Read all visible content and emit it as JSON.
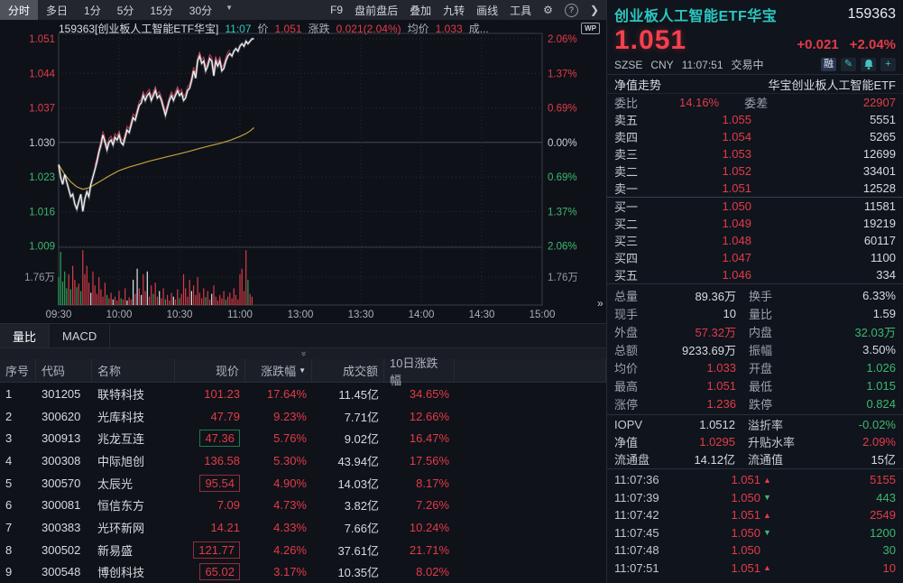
{
  "colors": {
    "red": "#e23b4a",
    "green": "#3cb96e",
    "teal": "#2cc8c0",
    "white": "#d6dae1",
    "yellow": "#c2a13c"
  },
  "toolbar": {
    "tabs": [
      {
        "label": "分时",
        "selected": true
      },
      {
        "label": "多日",
        "selected": false
      },
      {
        "label": "1分",
        "selected": false
      },
      {
        "label": "5分",
        "selected": false
      },
      {
        "label": "15分",
        "selected": false
      },
      {
        "label": "30分",
        "selected": false
      }
    ],
    "dropdown_caret": "▼",
    "right_items": [
      "F9",
      "盘前盘后",
      "叠加",
      "九转",
      "画线",
      "工具"
    ],
    "gear_icon": "⚙",
    "help_icon": "?",
    "more_icon": "❯"
  },
  "chart": {
    "info_segments": [
      {
        "text": "159363[创业板人工智能ETF华宝]",
        "color": "title"
      },
      {
        "text": "11:07",
        "color": "cyan"
      },
      {
        "text": "价",
        "color": "label"
      },
      {
        "text": "1.051",
        "color": "red"
      },
      {
        "text": "涨跌",
        "color": "label"
      },
      {
        "text": "0.021(2.04%)",
        "color": "red"
      },
      {
        "text": "均价",
        "color": "label"
      },
      {
        "text": "1.033",
        "color": "red"
      },
      {
        "text": "成...",
        "color": "label"
      }
    ],
    "wp_badge": "WP",
    "collapse_handle": "»",
    "chart_data": {
      "type": "line",
      "title": "159363 创业板人工智能ETF华宝 分时图",
      "x_ticks": [
        "09:30",
        "10:00",
        "10:30",
        "11:00",
        "13:00",
        "13:30",
        "14:00",
        "14:30",
        "15:00"
      ],
      "y_left_labels": [
        "1.051",
        "1.044",
        "1.037",
        "1.030",
        "1.023",
        "1.016",
        "1.009"
      ],
      "y_right_labels": [
        "2.06%",
        "1.37%",
        "0.69%",
        "0.00%",
        "0.69%",
        "1.37%",
        "2.06%"
      ],
      "vol_axis_label": "1.76万",
      "prev_close": 1.03,
      "ylim": [
        1.009,
        1.051
      ],
      "session_minutes": 240,
      "current_minute": 97,
      "price_series": [
        1.0255,
        1.023,
        1.0215,
        1.0235,
        1.022,
        1.0205,
        1.019,
        1.0195,
        1.0175,
        1.0165,
        1.018,
        1.0195,
        1.016,
        1.0185,
        1.02,
        1.019,
        1.0215,
        1.023,
        1.0245,
        1.026,
        1.028,
        1.0295,
        1.0315,
        1.03,
        1.0285,
        1.03,
        1.0305,
        1.0295,
        1.031,
        1.0305,
        1.0315,
        1.03,
        1.0295,
        1.031,
        1.0325,
        1.032,
        1.0335,
        1.035,
        1.0345,
        1.036,
        1.0375,
        1.038,
        1.0395,
        1.0385,
        1.0395,
        1.04,
        1.0385,
        1.0395,
        1.0405,
        1.039,
        1.0395,
        1.0385,
        1.037,
        1.0355,
        1.037,
        1.0385,
        1.0395,
        1.0385,
        1.0395,
        1.0405,
        1.0395,
        1.04,
        1.0385,
        1.039,
        1.0405,
        1.041,
        1.0425,
        1.0445,
        1.043,
        1.0465,
        1.0475,
        1.046,
        1.0465,
        1.0445,
        1.0455,
        1.047,
        1.0465,
        1.0435,
        1.0465,
        1.0455,
        1.0465,
        1.0445,
        1.045,
        1.0465,
        1.0475,
        1.048,
        1.0475,
        1.0485,
        1.049,
        1.0485,
        1.0495,
        1.05,
        1.0495,
        1.0505,
        1.05,
        1.0505,
        1.051,
        1.051
      ],
      "avg_series": [
        [
          0,
          1.0255
        ],
        [
          3,
          1.0235
        ],
        [
          6,
          1.022
        ],
        [
          9,
          1.021
        ],
        [
          12,
          1.0205
        ],
        [
          15,
          1.0208
        ],
        [
          18,
          1.0215
        ],
        [
          21,
          1.0222
        ],
        [
          25,
          1.0232
        ],
        [
          30,
          1.0243
        ],
        [
          35,
          1.025
        ],
        [
          40,
          1.0256
        ],
        [
          45,
          1.0262
        ],
        [
          50,
          1.0267
        ],
        [
          55,
          1.0272
        ],
        [
          60,
          1.0277
        ],
        [
          65,
          1.0282
        ],
        [
          70,
          1.0288
        ],
        [
          75,
          1.0293
        ],
        [
          80,
          1.0298
        ],
        [
          85,
          1.0304
        ],
        [
          90,
          1.0312
        ],
        [
          93,
          1.0318
        ],
        [
          95,
          1.0323
        ],
        [
          97,
          1.033
        ]
      ],
      "lead_line": {
        "from": 18,
        "to": 85,
        "offset": 0.0008
      },
      "volume_bars": [
        "g50",
        "g95",
        "g42",
        "g60",
        "g30",
        "r55",
        "g28",
        "r70",
        "r45",
        "g32",
        "r38",
        "g25",
        "r98",
        "r55",
        "r70",
        "r40",
        "w22",
        "r60",
        "r35",
        "r20",
        "r50",
        "r28",
        "r15",
        "r40",
        "g18",
        "r12",
        "r22",
        "w10",
        "r15",
        "r08",
        "r25",
        "g12",
        "r10",
        "r30",
        "w08",
        "r14",
        "r10",
        "w45",
        "r20",
        "w65",
        "r30",
        "w18",
        "r55",
        "r25",
        "w60",
        "r15",
        "r35",
        "g20",
        "r40",
        "r15",
        "w25",
        "r12",
        "r30",
        "g10",
        "r18",
        "r08",
        "r22",
        "w15",
        "r10",
        "r28",
        "g12",
        "r20",
        "r55",
        "r30",
        "r15",
        "r45",
        "w25",
        "r35",
        "r18",
        "r50",
        "r22",
        "r12",
        "r30",
        "g14",
        "r25",
        "r10",
        "w20",
        "r35",
        "r15",
        "r08",
        "r18",
        "r12",
        "r25",
        "g10",
        "r15",
        "r22",
        "r12",
        "r30",
        "r18",
        "r10",
        "r55",
        "r65",
        "r25",
        "r98",
        "g45",
        "r20",
        "r15"
      ]
    }
  },
  "subtabs": [
    {
      "label": "量比",
      "selected": true
    },
    {
      "label": "MACD",
      "selected": false
    }
  ],
  "splitter_icon": "»",
  "table": {
    "headers": [
      {
        "label": "序号",
        "align": "left"
      },
      {
        "label": "代码",
        "align": "left"
      },
      {
        "label": "名称",
        "align": "left"
      },
      {
        "label": "现价",
        "align": "right"
      },
      {
        "label": "涨跌幅",
        "align": "right",
        "sort": "▼"
      },
      {
        "label": "成交额",
        "align": "right"
      },
      {
        "label": "10日涨跌幅",
        "align": "right"
      }
    ],
    "rows": [
      {
        "idx": "1",
        "code": "301205",
        "name": "联特科技",
        "price": "101.23",
        "pct": "17.64%",
        "amount": "11.45亿",
        "pct10": "34.65%",
        "box": null
      },
      {
        "idx": "2",
        "code": "300620",
        "name": "光库科技",
        "price": "47.79",
        "pct": "9.23%",
        "amount": "7.71亿",
        "pct10": "12.66%",
        "box": null
      },
      {
        "idx": "3",
        "code": "300913",
        "name": "兆龙互连",
        "price": "47.36",
        "pct": "5.76%",
        "amount": "9.02亿",
        "pct10": "16.47%",
        "box": "green"
      },
      {
        "idx": "4",
        "code": "300308",
        "name": "中际旭创",
        "price": "136.58",
        "pct": "5.30%",
        "amount": "43.94亿",
        "pct10": "17.56%",
        "box": null
      },
      {
        "idx": "5",
        "code": "300570",
        "name": "太辰光",
        "price": "95.54",
        "pct": "4.90%",
        "amount": "14.03亿",
        "pct10": "8.17%",
        "box": "red"
      },
      {
        "idx": "6",
        "code": "300081",
        "name": "恒信东方",
        "price": "7.09",
        "pct": "4.73%",
        "amount": "3.82亿",
        "pct10": "7.26%",
        "box": null
      },
      {
        "idx": "7",
        "code": "300383",
        "name": "光环新网",
        "price": "14.21",
        "pct": "4.33%",
        "amount": "7.66亿",
        "pct10": "10.24%",
        "box": null
      },
      {
        "idx": "8",
        "code": "300502",
        "name": "新易盛",
        "price": "121.77",
        "pct": "4.26%",
        "amount": "37.61亿",
        "pct10": "21.71%",
        "box": "red"
      },
      {
        "idx": "9",
        "code": "300548",
        "name": "博创科技",
        "price": "65.02",
        "pct": "3.17%",
        "amount": "10.35亿",
        "pct10": "8.02%",
        "box": "red"
      }
    ]
  },
  "panel": {
    "name": "创业板人工智能ETF华宝",
    "code": "159363",
    "price": "1.051",
    "change": "+0.021",
    "change_pct": "+2.04%",
    "exchange": "SZSE",
    "currency": "CNY",
    "time": "11:07:51",
    "status": "交易中",
    "badge": "融",
    "nav": {
      "label": "净值走势",
      "value": "华宝创业板人工智能ETF"
    },
    "weibi": {
      "label": "委比",
      "value": "14.16%",
      "label2": "委差",
      "value2": "22907"
    },
    "asks": [
      {
        "label": "卖五",
        "price": "1.055",
        "vol": "5551"
      },
      {
        "label": "卖四",
        "price": "1.054",
        "vol": "5265"
      },
      {
        "label": "卖三",
        "price": "1.053",
        "vol": "12699"
      },
      {
        "label": "卖二",
        "price": "1.052",
        "vol": "33401"
      },
      {
        "label": "卖一",
        "price": "1.051",
        "vol": "12528"
      }
    ],
    "bids": [
      {
        "label": "买一",
        "price": "1.050",
        "vol": "11581"
      },
      {
        "label": "买二",
        "price": "1.049",
        "vol": "19219"
      },
      {
        "label": "买三",
        "price": "1.048",
        "vol": "60117"
      },
      {
        "label": "买四",
        "price": "1.047",
        "vol": "1100"
      },
      {
        "label": "买五",
        "price": "1.046",
        "vol": "334"
      }
    ],
    "stats": [
      {
        "l": "总量",
        "v": "89.36万",
        "vc": "w",
        "l2": "换手",
        "v2": "6.33%",
        "v2c": "w"
      },
      {
        "l": "现手",
        "v": "10",
        "vc": "w",
        "l2": "量比",
        "v2": "1.59",
        "v2c": "w"
      },
      {
        "l": "外盘",
        "v": "57.32万",
        "vc": "r",
        "l2": "内盘",
        "v2": "32.03万",
        "v2c": "g"
      },
      {
        "l": "总额",
        "v": "9233.69万",
        "vc": "w",
        "l2": "振幅",
        "v2": "3.50%",
        "v2c": "w"
      },
      {
        "l": "均价",
        "v": "1.033",
        "vc": "r",
        "l2": "开盘",
        "v2": "1.026",
        "v2c": "g"
      },
      {
        "l": "最高",
        "v": "1.051",
        "vc": "r",
        "l2": "最低",
        "v2": "1.015",
        "v2c": "g"
      },
      {
        "l": "涨停",
        "v": "1.236",
        "vc": "r",
        "l2": "跌停",
        "v2": "0.824",
        "v2c": "g"
      }
    ],
    "iopv": [
      {
        "l": "IOPV",
        "v": "1.0512",
        "vc": "w",
        "l2": "溢折率",
        "v2": "-0.02%",
        "v2c": "g"
      },
      {
        "l": "净值",
        "v": "1.0295",
        "vc": "r",
        "l2": "升贴水率",
        "v2": "2.09%",
        "v2c": "r"
      },
      {
        "l": "流通盘",
        "v": "14.12亿",
        "vc": "w",
        "l2": "流通值",
        "v2": "15亿",
        "v2c": "w"
      }
    ],
    "ticks": [
      {
        "time": "11:07:36",
        "price": "1.051",
        "dir": "up",
        "vol": "5155",
        "volc": "r"
      },
      {
        "time": "11:07:39",
        "price": "1.050",
        "dir": "down",
        "vol": "443",
        "volc": "g"
      },
      {
        "time": "11:07:42",
        "price": "1.051",
        "dir": "up",
        "vol": "2549",
        "volc": "r"
      },
      {
        "time": "11:07:45",
        "price": "1.050",
        "dir": "down",
        "vol": "1200",
        "volc": "g"
      },
      {
        "time": "11:07:48",
        "price": "1.050",
        "dir": "none",
        "vol": "30",
        "volc": "g"
      },
      {
        "time": "11:07:51",
        "price": "1.051",
        "dir": "up",
        "vol": "10",
        "volc": "r"
      }
    ]
  }
}
